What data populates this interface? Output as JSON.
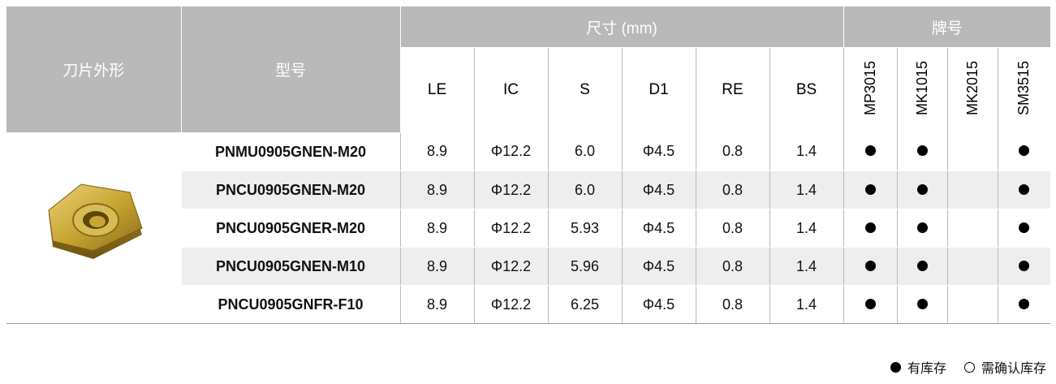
{
  "headers": {
    "shape": "刀片外形",
    "model": "型号",
    "dimensions_group": "尺寸 (mm)",
    "grade_group": "牌号",
    "dimensions": [
      "LE",
      "IC",
      "S",
      "D1",
      "RE",
      "BS"
    ],
    "grades": [
      "MP3015",
      "MK1015",
      "MK2015",
      "SM3515"
    ]
  },
  "rows": [
    {
      "model": "PNMU0905GNEN-M20",
      "values": [
        "8.9",
        "Φ12.2",
        "6.0",
        "Φ4.5",
        "0.8",
        "1.4"
      ],
      "stock": [
        true,
        true,
        false,
        true
      ]
    },
    {
      "model": "PNCU0905GNEN-M20",
      "values": [
        "8.9",
        "Φ12.2",
        "6.0",
        "Φ4.5",
        "0.8",
        "1.4"
      ],
      "stock": [
        true,
        true,
        false,
        true
      ]
    },
    {
      "model": "PNCU0905GNER-M20",
      "values": [
        "8.9",
        "Φ12.2",
        "5.93",
        "Φ4.5",
        "0.8",
        "1.4"
      ],
      "stock": [
        true,
        true,
        false,
        true
      ]
    },
    {
      "model": "PNCU0905GNEN-M10",
      "values": [
        "8.9",
        "Φ12.2",
        "5.96",
        "Φ4.5",
        "0.8",
        "1.4"
      ],
      "stock": [
        true,
        true,
        false,
        true
      ]
    },
    {
      "model": "PNCU0905GNFR-F10",
      "values": [
        "8.9",
        "Φ12.2",
        "6.25",
        "Φ4.5",
        "0.8",
        "1.4"
      ],
      "stock": [
        true,
        true,
        false,
        true
      ]
    }
  ],
  "legend": {
    "in_stock": "有库存",
    "confirm_stock": "需确认库存"
  },
  "colors": {
    "header_bg": "#b9b9b9",
    "alt_row_bg": "#eeeeee",
    "insert_gold": "#c9a633"
  },
  "image": {
    "icon": "pentagon-insert-icon"
  }
}
